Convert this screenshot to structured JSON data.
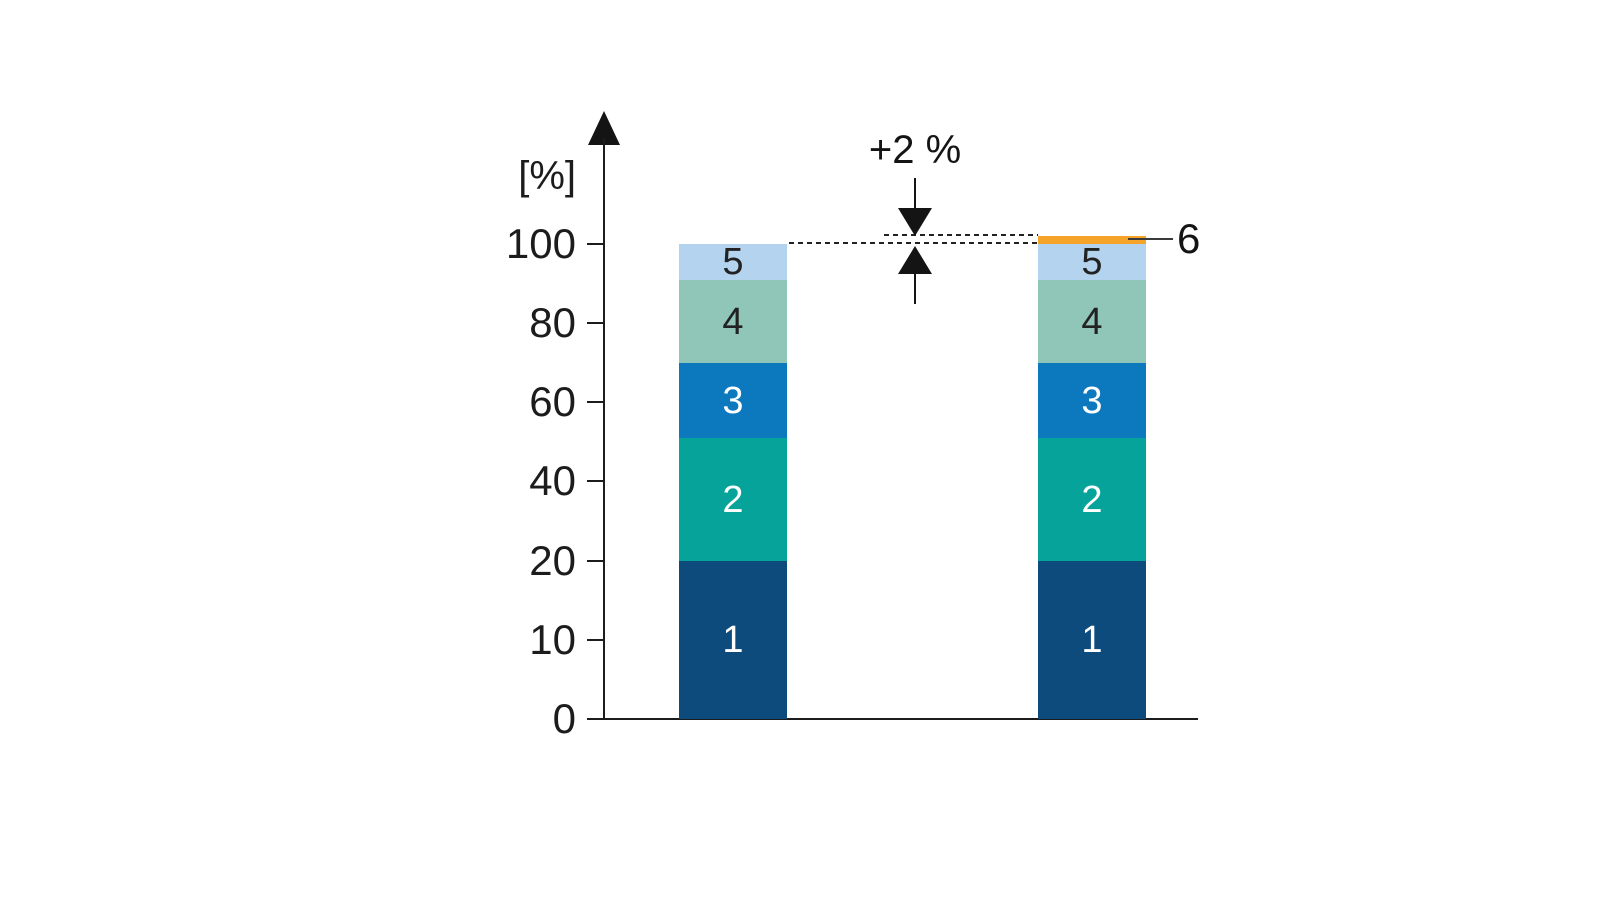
{
  "chart_data": {
    "type": "bar",
    "stacked": true,
    "title": "",
    "ylabel": "[%]",
    "ytick_values": [
      0,
      10,
      20,
      40,
      60,
      80,
      100
    ],
    "ytick_labels": [
      "0",
      "10",
      "20",
      "40",
      "60",
      "80",
      "100"
    ],
    "axis_note": "schematic axis: tick marks are equally spaced although value steps are 10,10,20,20,20,20; axis has arrowhead at top",
    "grid": false,
    "legend": "none",
    "categories": [
      "",
      ""
    ],
    "bars": [
      {
        "name": "bar-1",
        "segments": [
          {
            "label": "1",
            "value": 20,
            "cumulative_to": 20,
            "color": "#0E4B7D",
            "label_color": "#ffffff",
            "label_position": "inside"
          },
          {
            "label": "2",
            "value": 31,
            "cumulative_to": 51,
            "color": "#06A39A",
            "label_color": "#ffffff",
            "label_position": "inside"
          },
          {
            "label": "3",
            "value": 19,
            "cumulative_to": 70,
            "color": "#0C78BE",
            "label_color": "#ffffff",
            "label_position": "inside"
          },
          {
            "label": "4",
            "value": 21,
            "cumulative_to": 91,
            "color": "#8FC6B7",
            "label_color": "#222222",
            "label_position": "inside"
          },
          {
            "label": "5",
            "value": 9,
            "cumulative_to": 100,
            "color": "#B4D3EE",
            "label_color": "#222222",
            "label_position": "inside"
          }
        ]
      },
      {
        "name": "bar-2",
        "segments": [
          {
            "label": "1",
            "value": 20,
            "cumulative_to": 20,
            "color": "#0E4B7D",
            "label_color": "#ffffff",
            "label_position": "inside"
          },
          {
            "label": "2",
            "value": 31,
            "cumulative_to": 51,
            "color": "#06A39A",
            "label_color": "#ffffff",
            "label_position": "inside"
          },
          {
            "label": "3",
            "value": 19,
            "cumulative_to": 70,
            "color": "#0C78BE",
            "label_color": "#ffffff",
            "label_position": "inside"
          },
          {
            "label": "4",
            "value": 21,
            "cumulative_to": 91,
            "color": "#8FC6B7",
            "label_color": "#222222",
            "label_position": "inside"
          },
          {
            "label": "5",
            "value": 9,
            "cumulative_to": 100,
            "color": "#B4D3EE",
            "label_color": "#222222",
            "label_position": "inside"
          },
          {
            "label": "6",
            "value": 2,
            "cumulative_to": 102,
            "color": "#F5A329",
            "label_color": "#141414",
            "label_position": "outside-right"
          }
        ]
      }
    ],
    "annotation": {
      "text": "+2 %",
      "from_value": 100,
      "to_value": 102,
      "style": "two dashed reference lines with opposing filled arrowheads between the bars"
    }
  }
}
